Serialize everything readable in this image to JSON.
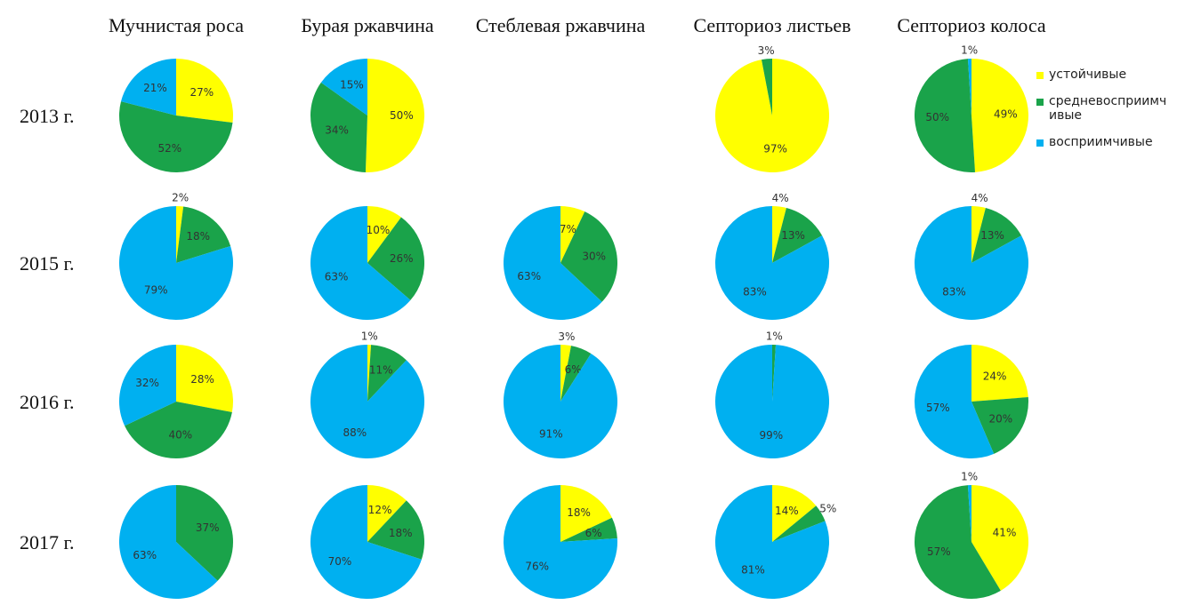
{
  "columns": [
    "Мучнистая роса",
    "Бурая ржавчина",
    "Стеблевая ржавчина",
    "Септориоз листьев",
    "Септориоз колоса"
  ],
  "rows": [
    "2013 г.",
    "2015 г.",
    "2016 г.",
    "2017 г."
  ],
  "legend": {
    "names": [
      "устойчивые",
      "средневосприимчивые",
      "восприимчивые"
    ],
    "colors": [
      "#ffff00",
      "#1aa34a",
      "#00b0f0"
    ]
  },
  "chart_data": [
    [
      {
        "type": "pie",
        "values": [
          27,
          52,
          21
        ],
        "value_labels": [
          "27%",
          "52%",
          "21%"
        ],
        "colors": [
          "#ffff00",
          "#1aa34a",
          "#00b0f0"
        ]
      },
      {
        "type": "pie",
        "values": [
          50,
          34,
          15
        ],
        "value_labels": [
          "50%",
          "34%",
          "15%"
        ],
        "colors": [
          "#ffff00",
          "#1aa34a",
          "#00b0f0"
        ]
      },
      null,
      {
        "type": "pie",
        "values": [
          97,
          3
        ],
        "value_labels": [
          "97%",
          "3%"
        ],
        "colors": [
          "#ffff00",
          "#1aa34a"
        ]
      },
      {
        "type": "pie",
        "values": [
          49,
          50,
          1
        ],
        "value_labels": [
          "49%",
          "50%",
          "1%"
        ],
        "colors": [
          "#ffff00",
          "#1aa34a",
          "#00b0f0"
        ]
      }
    ],
    [
      {
        "type": "pie",
        "values": [
          2,
          18,
          79
        ],
        "value_labels": [
          "2%",
          "18%",
          "79%"
        ],
        "colors": [
          "#ffff00",
          "#1aa34a",
          "#00b0f0"
        ]
      },
      {
        "type": "pie",
        "values": [
          10,
          26,
          63
        ],
        "value_labels": [
          "10%",
          "26%",
          "63%"
        ],
        "colors": [
          "#ffff00",
          "#1aa34a",
          "#00b0f0"
        ]
      },
      {
        "type": "pie",
        "values": [
          7,
          30,
          63
        ],
        "value_labels": [
          "7%",
          "30%",
          "63%"
        ],
        "colors": [
          "#ffff00",
          "#1aa34a",
          "#00b0f0"
        ]
      },
      {
        "type": "pie",
        "values": [
          4,
          13,
          83
        ],
        "value_labels": [
          "4%",
          "13%",
          "83%"
        ],
        "colors": [
          "#ffff00",
          "#1aa34a",
          "#00b0f0"
        ]
      },
      {
        "type": "pie",
        "values": [
          4,
          13,
          83
        ],
        "value_labels": [
          "4%",
          "13%",
          "83%"
        ],
        "colors": [
          "#ffff00",
          "#1aa34a",
          "#00b0f0"
        ]
      }
    ],
    [
      {
        "type": "pie",
        "values": [
          28,
          40,
          32
        ],
        "value_labels": [
          "28%",
          "40%",
          "32%"
        ],
        "colors": [
          "#ffff00",
          "#1aa34a",
          "#00b0f0"
        ]
      },
      {
        "type": "pie",
        "values": [
          1,
          11,
          88
        ],
        "value_labels": [
          "1%",
          "11%",
          "88%"
        ],
        "colors": [
          "#ffff00",
          "#1aa34a",
          "#00b0f0"
        ]
      },
      {
        "type": "pie",
        "values": [
          3,
          6,
          91
        ],
        "value_labels": [
          "3%",
          "6%",
          "91%"
        ],
        "colors": [
          "#ffff00",
          "#1aa34a",
          "#00b0f0"
        ]
      },
      {
        "type": "pie",
        "values": [
          1,
          99
        ],
        "value_labels": [
          "1%",
          "99%"
        ],
        "colors": [
          "#1aa34a",
          "#00b0f0"
        ]
      },
      {
        "type": "pie",
        "values": [
          24,
          20,
          57
        ],
        "value_labels": [
          "24%",
          "20%",
          "57%"
        ],
        "colors": [
          "#ffff00",
          "#1aa34a",
          "#00b0f0"
        ]
      }
    ],
    [
      {
        "type": "pie",
        "values": [
          37,
          63
        ],
        "value_labels": [
          "37%",
          "63%"
        ],
        "colors": [
          "#1aa34a",
          "#00b0f0"
        ]
      },
      {
        "type": "pie",
        "values": [
          12,
          18,
          70
        ],
        "value_labels": [
          "12%",
          "18%",
          "70%"
        ],
        "colors": [
          "#ffff00",
          "#1aa34a",
          "#00b0f0"
        ]
      },
      {
        "type": "pie",
        "values": [
          18,
          6,
          76
        ],
        "value_labels": [
          "18%",
          "6%",
          "76%"
        ],
        "colors": [
          "#ffff00",
          "#1aa34a",
          "#00b0f0"
        ]
      },
      {
        "type": "pie",
        "values": [
          14,
          5,
          81
        ],
        "value_labels": [
          "14%",
          "5%",
          "81%"
        ],
        "colors": [
          "#ffff00",
          "#1aa34a",
          "#00b0f0"
        ]
      },
      {
        "type": "pie",
        "values": [
          41,
          57,
          1
        ],
        "value_labels": [
          "41%",
          "57%",
          "1%"
        ],
        "colors": [
          "#ffff00",
          "#1aa34a",
          "#00b0f0"
        ]
      }
    ]
  ]
}
